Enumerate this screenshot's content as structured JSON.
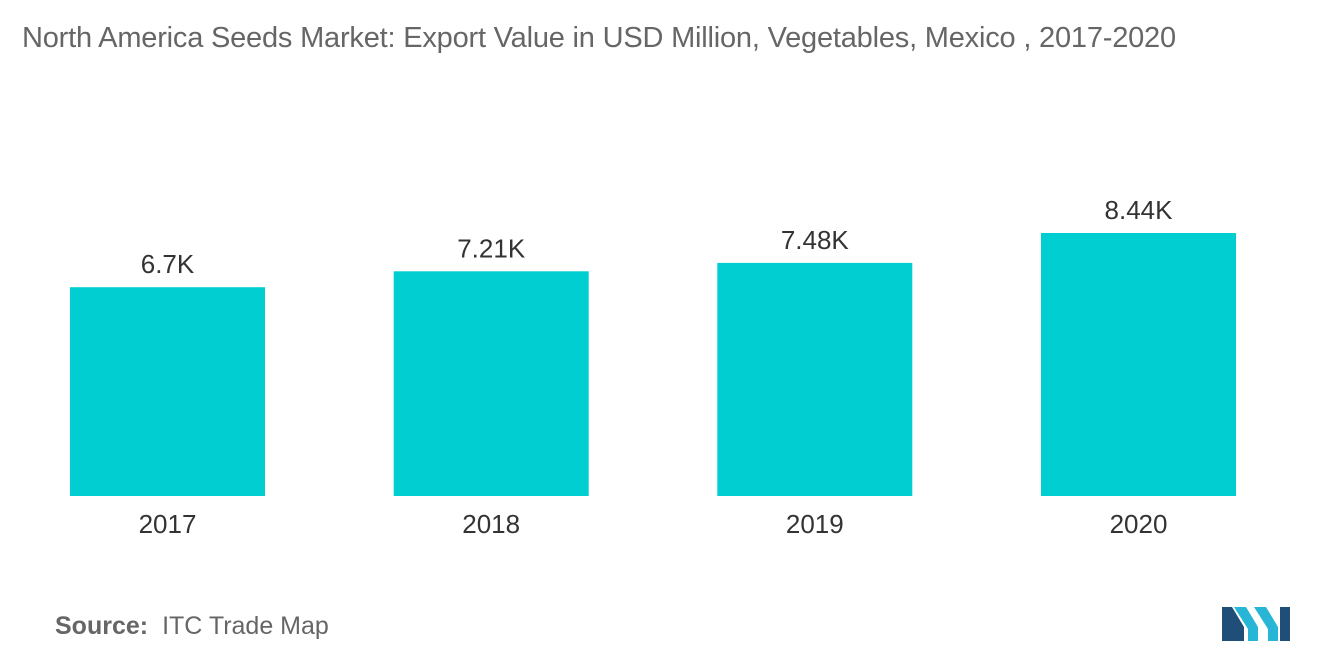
{
  "title": "North America Seeds Market: Export Value in USD Million, Vegetables, Mexico , 2017-2020",
  "source": {
    "label": "Source:",
    "text": "ITC Trade Map"
  },
  "colors": {
    "bar": "#00CED1",
    "logo_dark": "#1F4E79",
    "logo_light": "#29B6D6"
  },
  "logo_icon": "mordor-intelligence-logo",
  "chart_data": {
    "type": "bar",
    "categories": [
      "2017",
      "2018",
      "2019",
      "2020"
    ],
    "values": [
      6700,
      7210,
      7480,
      8440
    ],
    "value_labels": [
      "6.7K",
      "7.21K",
      "7.48K",
      "8.44K"
    ],
    "title": "North America Seeds Market: Export Value in USD Million, Vegetables, Mexico , 2017-2020",
    "xlabel": "",
    "ylabel": "",
    "ylim": [
      0,
      10000
    ],
    "grid": false,
    "legend": "none"
  }
}
